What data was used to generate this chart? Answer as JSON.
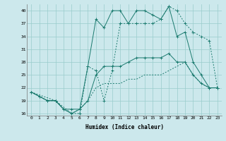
{
  "xlabel": "Humidex (Indice chaleur)",
  "bg_color": "#cce8ec",
  "grid_color": "#99cccc",
  "line_color": "#1a7a6e",
  "xlim": [
    -0.5,
    23.5
  ],
  "ylim": [
    15.5,
    41.5
  ],
  "yticks": [
    16,
    19,
    22,
    25,
    28,
    31,
    34,
    37,
    40
  ],
  "xticks": [
    0,
    1,
    2,
    3,
    4,
    5,
    6,
    7,
    8,
    9,
    10,
    11,
    12,
    13,
    14,
    15,
    16,
    17,
    18,
    19,
    20,
    21,
    22,
    23
  ],
  "line1_x": [
    0,
    1,
    2,
    3,
    4,
    5,
    6,
    7,
    8,
    9,
    10,
    11,
    12,
    13,
    14,
    15,
    16,
    17,
    18,
    19,
    20,
    21,
    22,
    23
  ],
  "line1_y": [
    21,
    20,
    19,
    19,
    17,
    17,
    17,
    19,
    25,
    27,
    27,
    27,
    28,
    29,
    29,
    29,
    29,
    30,
    28,
    28,
    25,
    23,
    22,
    22
  ],
  "line2_x": [
    0,
    1,
    2,
    3,
    4,
    5,
    6,
    7,
    8,
    9,
    10,
    11,
    12,
    13,
    14,
    15,
    16,
    17,
    18,
    19,
    20,
    21,
    22,
    23
  ],
  "line2_y": [
    21,
    20,
    19,
    19,
    17,
    16,
    17,
    27,
    38,
    36,
    40,
    40,
    37,
    40,
    40,
    39,
    38,
    41,
    34,
    35,
    28,
    25,
    22,
    22
  ],
  "line3_x": [
    0,
    1,
    2,
    3,
    4,
    5,
    6,
    7,
    8,
    9,
    10,
    11,
    12,
    13,
    14,
    15,
    16,
    17,
    18,
    19,
    20,
    21,
    22,
    23
  ],
  "line3_y": [
    21,
    20,
    19,
    19,
    17,
    16,
    17,
    19,
    22,
    23,
    23,
    23,
    24,
    24,
    25,
    25,
    25,
    26,
    27,
    28,
    25,
    23,
    22,
    22
  ],
  "line4_x": [
    0,
    3,
    5,
    6,
    7,
    8,
    9,
    10,
    11,
    12,
    13,
    14,
    15,
    16,
    17,
    18,
    19,
    20,
    21,
    22,
    23
  ],
  "line4_y": [
    21,
    19,
    16,
    16,
    27,
    26,
    19,
    26,
    37,
    37,
    37,
    37,
    37,
    38,
    41,
    40,
    37,
    35,
    34,
    33,
    22
  ]
}
